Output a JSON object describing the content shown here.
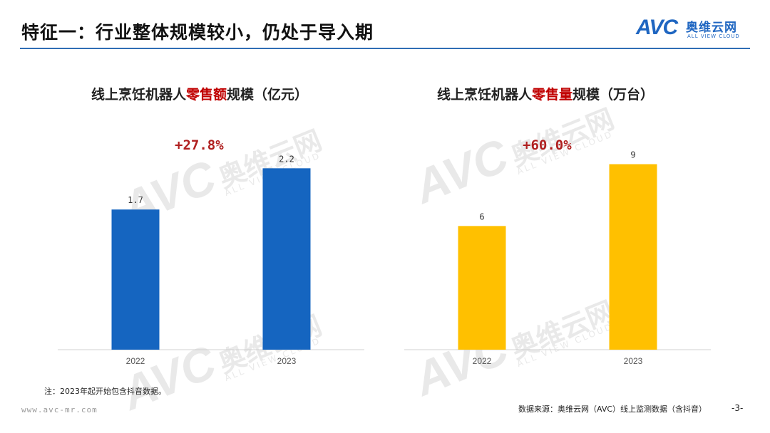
{
  "header": {
    "title": "特征一：行业整体规模较小，仍处于导入期",
    "logo_text_latin": "AVC",
    "logo_text_cn": "奥维云网",
    "logo_text_en": "ALL VIEW CLOUD",
    "brand_color": "#1f66c1"
  },
  "watermark": {
    "latin": "AVC",
    "cn": "奥维云网",
    "en": "ALL VIEW CLOUD"
  },
  "charts": [
    {
      "title_prefix": "线上烹饪机器人",
      "title_highlight": "零售额",
      "title_suffix": "规模（亿元）",
      "growth": "+27.8%"
    },
    {
      "title_prefix": "线上烹饪机器人",
      "title_highlight": "零售量",
      "title_suffix": "规模（万台）",
      "growth": "+60.0%"
    }
  ],
  "chart_data": [
    {
      "type": "bar",
      "title": "线上烹饪机器人零售额规模（亿元）",
      "categories": [
        "2022",
        "2023"
      ],
      "values": [
        1.7,
        2.2
      ],
      "value_labels": [
        "1.7",
        "2.2"
      ],
      "ylim": [
        0,
        2.6
      ],
      "color": "#1565c0",
      "annotation": "+27.8%",
      "grid": false
    },
    {
      "type": "bar",
      "title": "线上烹饪机器人零售量规模（万台）",
      "categories": [
        "2022",
        "2023"
      ],
      "values": [
        6,
        9
      ],
      "value_labels": [
        "6",
        "9"
      ],
      "ylim": [
        0,
        10.4
      ],
      "color": "#ffc000",
      "annotation": "+60.0%",
      "grid": false
    }
  ],
  "footer": {
    "note": "注：2023年起开始包含抖音数据。",
    "url": "www.avc-mr.com",
    "source": "数据来源：奥维云网（AVC）线上监测数据（含抖音）",
    "page_number": "-3-"
  }
}
